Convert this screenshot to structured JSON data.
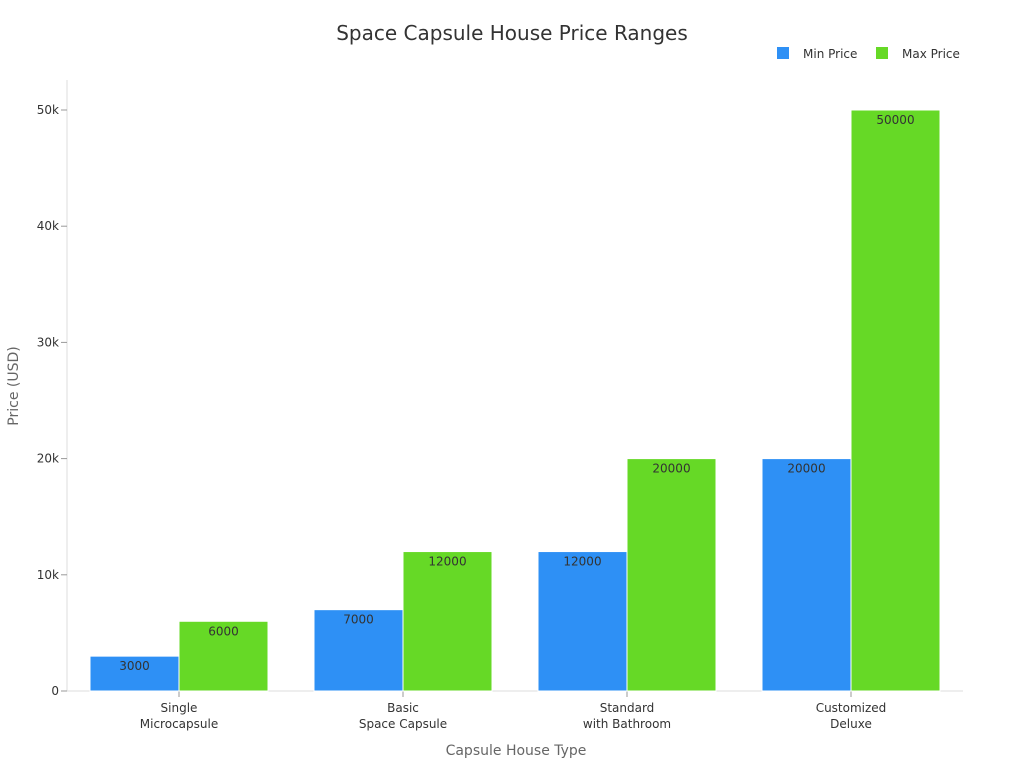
{
  "chart_data": {
    "type": "bar",
    "title": "Space Capsule House Price Ranges",
    "xlabel": "Capsule House Type",
    "ylabel": "Price (USD)",
    "categories": [
      [
        "Single",
        "Microcapsule"
      ],
      [
        "Basic",
        "Space Capsule"
      ],
      [
        "Standard",
        "with Bathroom"
      ],
      [
        "Customized",
        "Deluxe"
      ]
    ],
    "series": [
      {
        "name": "Min Price",
        "color": "#2e90f5",
        "values": [
          3000,
          7000,
          12000,
          20000
        ]
      },
      {
        "name": "Max Price",
        "color": "#66d926",
        "values": [
          6000,
          12000,
          20000,
          50000
        ]
      }
    ],
    "ylim": [
      0,
      52500
    ],
    "yticks": [
      0,
      10000,
      20000,
      30000,
      40000,
      50000
    ],
    "ytick_labels": [
      "0",
      "10k",
      "20k",
      "30k",
      "40k",
      "50k"
    ],
    "grid": false,
    "legend_position": "top-right",
    "data_labels": true
  }
}
